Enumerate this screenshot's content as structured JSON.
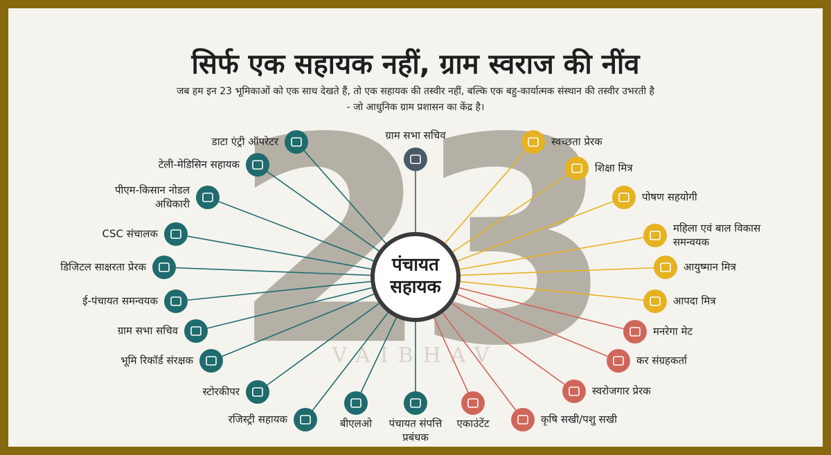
{
  "header": {
    "title": "सिर्फ एक सहायक नहीं, ग्राम स्वराज की नींव",
    "subtitle": [
      "जब हम इन 23 भूमिकाओं को एक साथ देखते हैं, तो एक सहायक की तस्वीर नहीं, बल्कि एक बहु-कार्यात्मक संस्थान की तस्वीर उभरती है",
      "- जो आधुनिक ग्राम प्रशासन का केंद्र है।"
    ]
  },
  "center": {
    "lines": [
      "पंचायत",
      "सहायक"
    ]
  },
  "big_number": "23",
  "watermark": "VAIBHAV",
  "nodes": [
    {
      "lines": [
        "डाटा एंट्री ऑपरेटर"
      ],
      "color": "#1f6b6e"
    },
    {
      "lines": [
        "टेली-मेडिसिन सहायक"
      ],
      "color": "#1f6b6e"
    },
    {
      "lines": [
        "पीएम-किसान नोडल",
        "अधिकारी"
      ],
      "color": "#1f6b6e"
    },
    {
      "lines": [
        "CSC संचालक"
      ],
      "color": "#1f6b6e"
    },
    {
      "lines": [
        "डिजिटल साक्षरता प्रेरक"
      ],
      "color": "#1f6b6e"
    },
    {
      "lines": [
        "ई-पंचायत समन्वयक"
      ],
      "color": "#1f6b6e"
    },
    {
      "lines": [
        "ग्राम सभा सचिव"
      ],
      "color": "#1f6b6e"
    },
    {
      "lines": [
        "भूमि रिकॉर्ड संरक्षक"
      ],
      "color": "#1f6b6e"
    },
    {
      "lines": [
        "स्टोरकीपर"
      ],
      "color": "#1f6b6e"
    },
    {
      "lines": [
        "रजिस्ट्री सहायक"
      ],
      "color": "#1f6b6e"
    },
    {
      "lines": [
        "बीएलओ"
      ],
      "color": "#1f6b6e"
    },
    {
      "lines": [
        "पंचायत संपत्ति",
        "प्रबंधक"
      ],
      "color": "#1f6b6e"
    },
    {
      "lines": [
        "ग्राम सभा सचिव"
      ],
      "color": "#4a5a66"
    },
    {
      "lines": [
        "स्वच्छता प्रेरक"
      ],
      "color": "#e6b222"
    },
    {
      "lines": [
        "शिक्षा मित्र"
      ],
      "color": "#e6b222"
    },
    {
      "lines": [
        "पोषण सहयोगी"
      ],
      "color": "#e6b222"
    },
    {
      "lines": [
        "महिला एवं बाल विकास",
        "समन्वयक"
      ],
      "color": "#e6b222"
    },
    {
      "lines": [
        "आयुष्मान मित्र"
      ],
      "color": "#e6b222"
    },
    {
      "lines": [
        "आपदा मित्र"
      ],
      "color": "#e6b222"
    },
    {
      "lines": [
        "मनरेगा मेट"
      ],
      "color": "#d0665a"
    },
    {
      "lines": [
        "कर संग्रहकर्ता"
      ],
      "color": "#d0665a"
    },
    {
      "lines": [
        "स्वरोजगार प्रेरक"
      ],
      "color": "#d0665a"
    },
    {
      "lines": [
        "कृषि सखी/पशु सखी"
      ],
      "color": "#d0665a"
    },
    {
      "lines": [
        "एकाउंटेंट"
      ],
      "color": "#d0665a"
    }
  ]
}
